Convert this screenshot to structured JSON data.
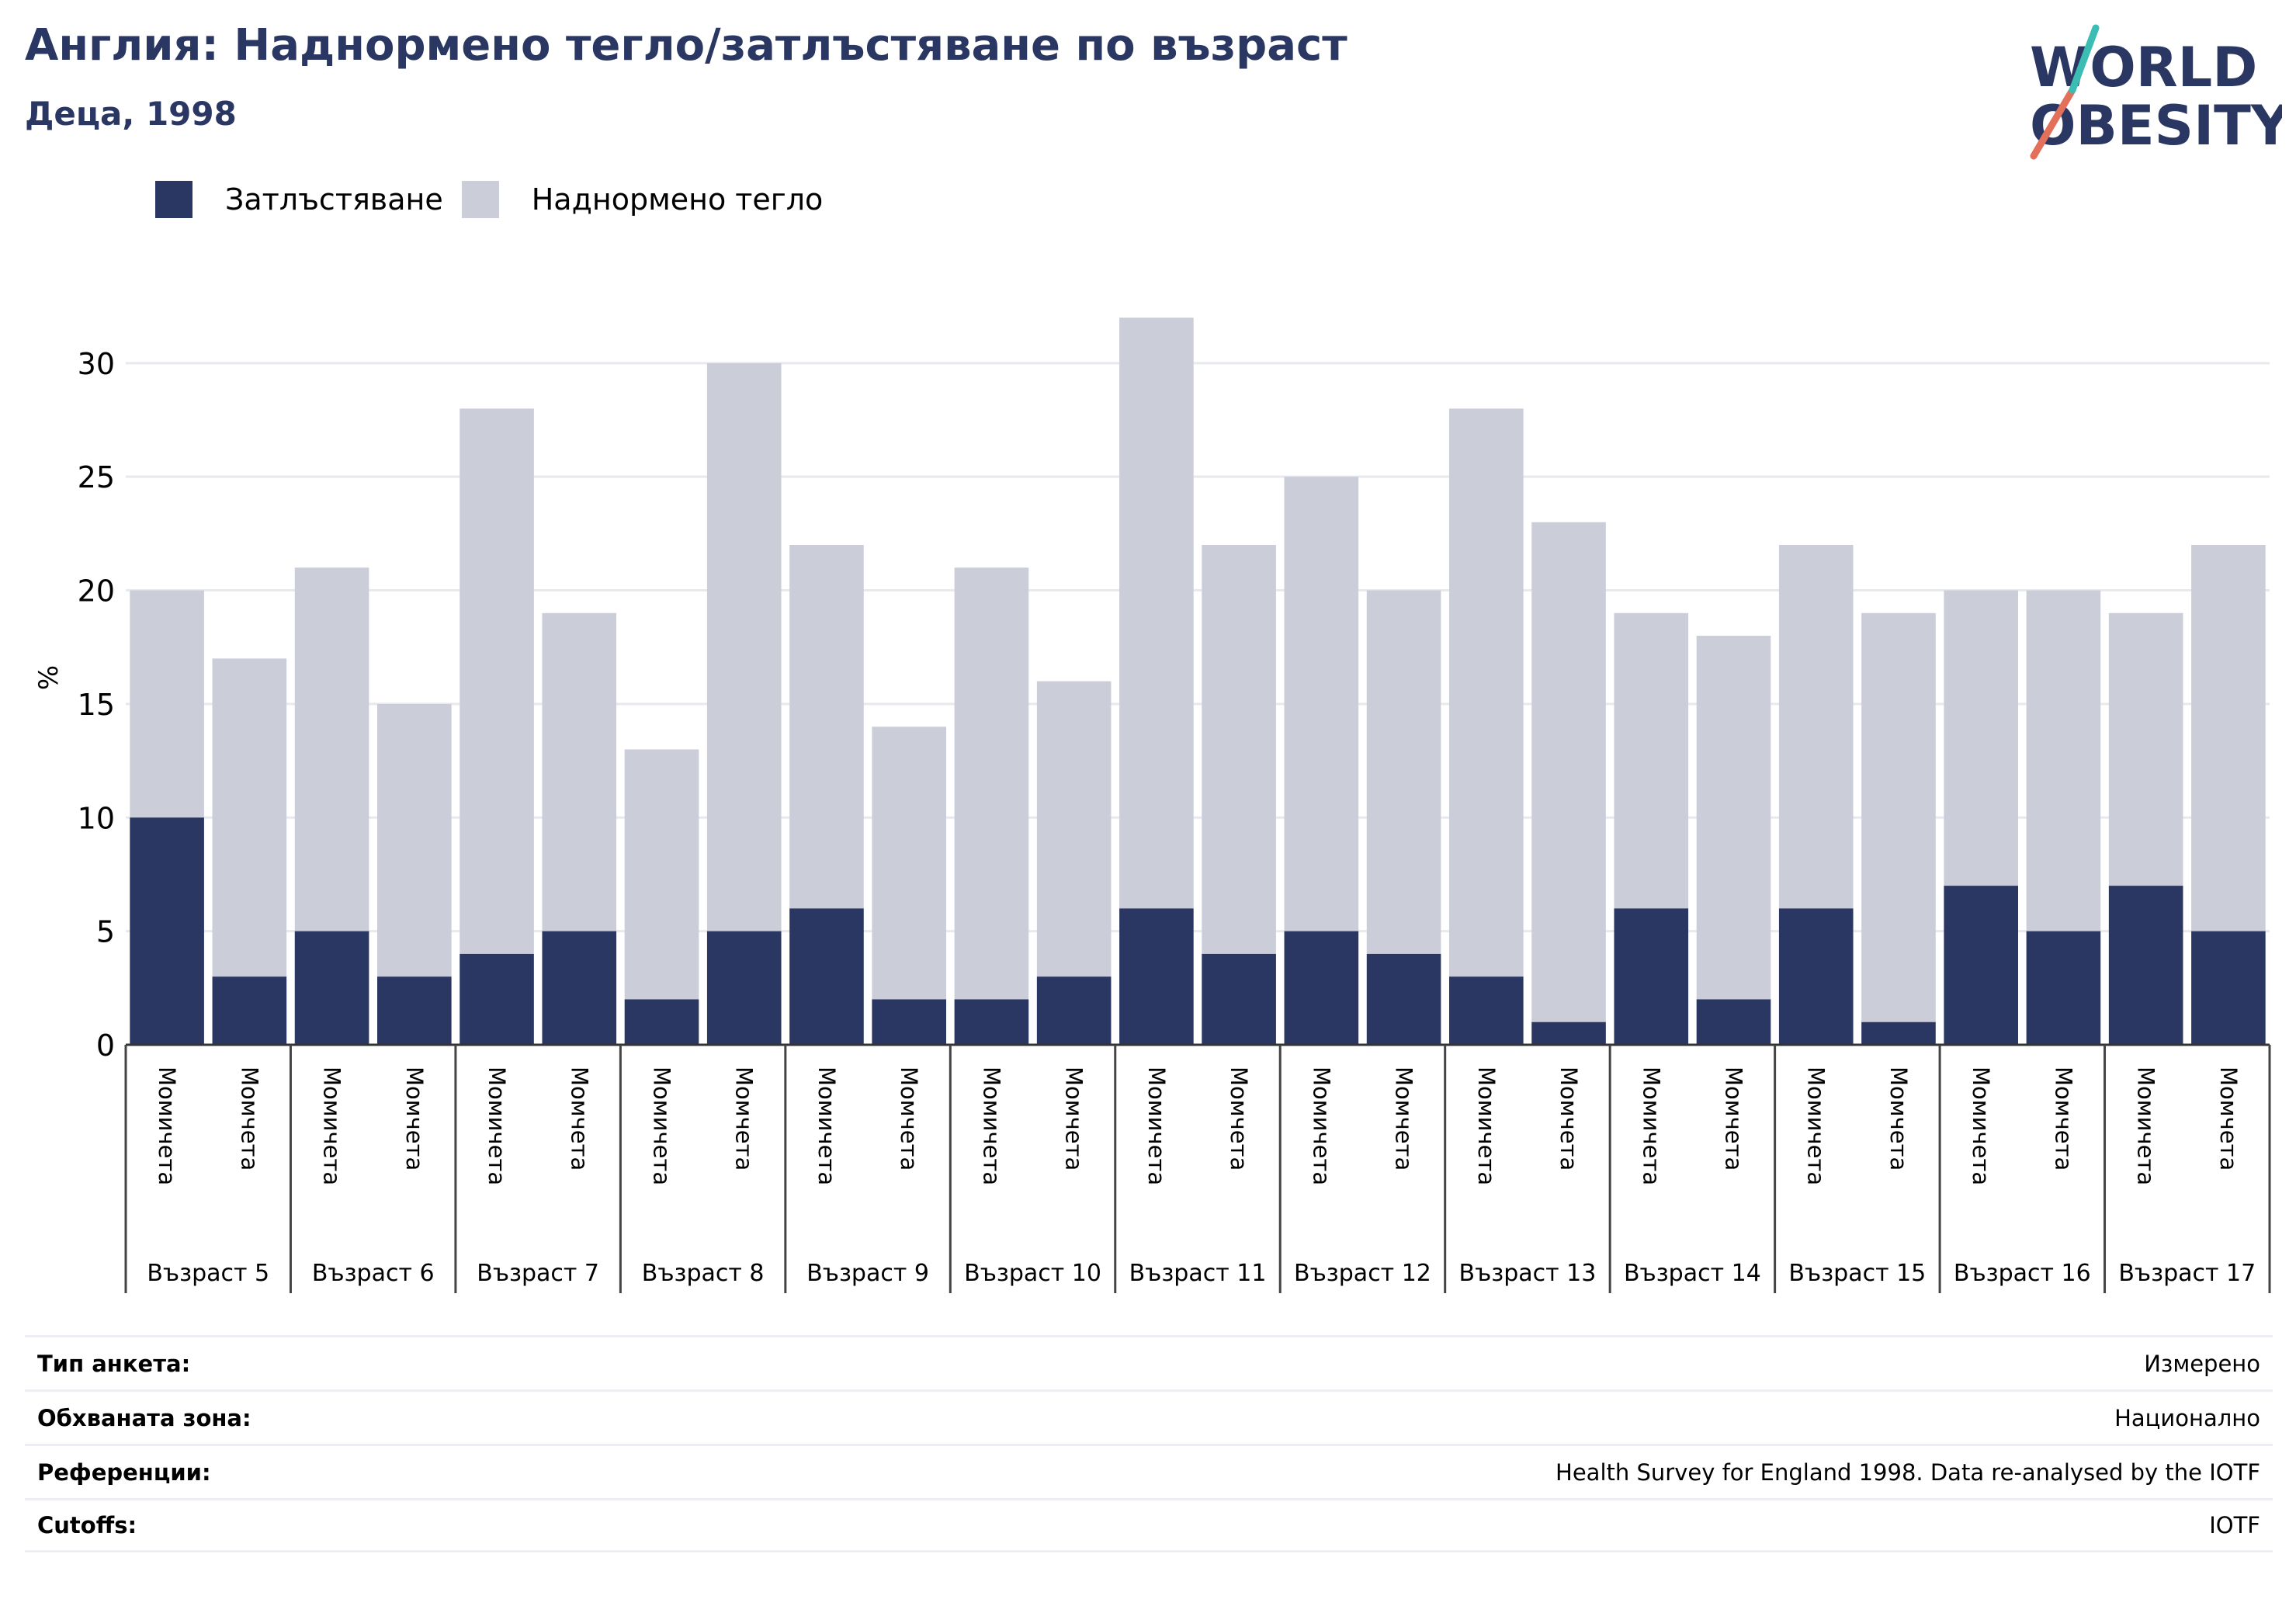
{
  "title": "Англия: Наднормено тегло/затлъстяване по възраст",
  "subtitle": "Деца, 1998",
  "logo": {
    "line1": "WORLD",
    "line2": "OBESITY",
    "colors": {
      "text": "#2b3763",
      "slash_top": "#3bbdb3",
      "slash_bottom": "#e2705a"
    }
  },
  "legend": [
    {
      "label": "Затлъстяване",
      "color": "#2b3763"
    },
    {
      "label": "Наднормено тегло",
      "color": "#cbcdd9"
    }
  ],
  "chart_data": {
    "type": "bar",
    "stacked": true,
    "ylabel": "%",
    "ylim": [
      0,
      33
    ],
    "yticks": [
      0,
      5,
      10,
      15,
      20,
      25,
      30
    ],
    "grid": true,
    "legend_position": "top-left",
    "sex_labels": [
      "Момичета",
      "Момчета"
    ],
    "groups": [
      "Възраст 5",
      "Възраст 6",
      "Възраст 7",
      "Възраст 8",
      "Възраст 9",
      "Възраст 10",
      "Възраст 11",
      "Възраст 12",
      "Възраст 13",
      "Възраст 14",
      "Възраст 15",
      "Възраст 16",
      "Възраст 17"
    ],
    "series": [
      {
        "name": "Затлъстяване",
        "color": "#2b3763",
        "values": [
          10,
          3,
          5,
          3,
          4,
          5,
          2,
          5,
          6,
          2,
          2,
          3,
          6,
          4,
          5,
          4,
          3,
          1,
          6,
          2,
          6,
          1,
          7,
          5,
          7,
          5
        ]
      },
      {
        "name": "Наднормено тегло",
        "color": "#cbcdd9",
        "values": [
          10,
          14,
          16,
          12,
          24,
          14,
          11,
          25,
          16,
          12,
          19,
          13,
          26,
          18,
          20,
          16,
          25,
          22,
          13,
          16,
          16,
          18,
          13,
          15,
          12,
          17
        ]
      }
    ],
    "totals": [
      20,
      17,
      21,
      15,
      28,
      19,
      13,
      30,
      22,
      14,
      21,
      16,
      32,
      22,
      25,
      20,
      28,
      23,
      19,
      18,
      22,
      19,
      20,
      20,
      19,
      22
    ]
  },
  "footer": [
    {
      "label": "Тип анкета:",
      "value": "Измерено"
    },
    {
      "label": "Обхваната зона:",
      "value": "Национално"
    },
    {
      "label": "Референции:",
      "value": "Health Survey for England 1998. Data re-analysed by the IOTF"
    },
    {
      "label": "Cutoffs:",
      "value": "IOTF"
    }
  ]
}
